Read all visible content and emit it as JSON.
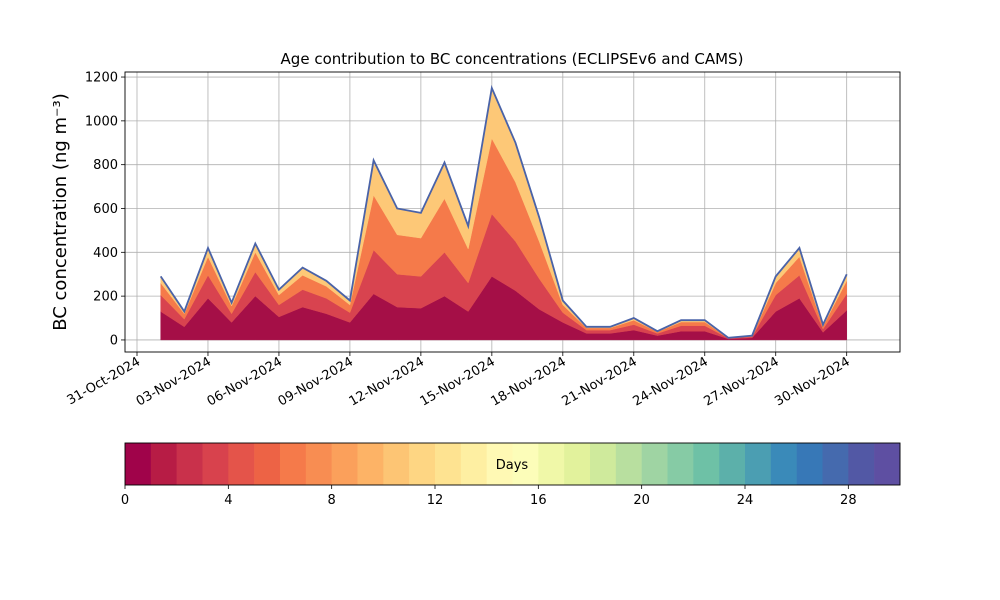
{
  "chart_data": {
    "type": "stacked-area",
    "title": "Age contribution to BC concentrations (ECLIPSEv6 and CAMS)",
    "y_label": "BC concentration (ng m⁻³)",
    "x": [
      "2024-11-01",
      "2024-11-02",
      "2024-11-03",
      "2024-11-04",
      "2024-11-05",
      "2024-11-06",
      "2024-11-07",
      "2024-11-08",
      "2024-11-09",
      "2024-11-10",
      "2024-11-11",
      "2024-11-12",
      "2024-11-13",
      "2024-11-14",
      "2024-11-15",
      "2024-11-16",
      "2024-11-17",
      "2024-11-18",
      "2024-11-19",
      "2024-11-20",
      "2024-11-21",
      "2024-11-22",
      "2024-11-23",
      "2024-11-24",
      "2024-11-25",
      "2024-11-26",
      "2024-11-27",
      "2024-11-28",
      "2024-11-29",
      "2024-11-30"
    ],
    "series": [
      {
        "color": "#a50f47",
        "values": [
          130,
          60,
          190,
          80,
          200,
          105,
          150,
          120,
          80,
          210,
          150,
          145,
          200,
          130,
          290,
          225,
          140,
          80,
          30,
          30,
          45,
          20,
          40,
          40,
          5,
          10,
          130,
          190,
          35,
          135
        ]
      },
      {
        "color": "#d8434f",
        "values": [
          75,
          35,
          105,
          40,
          110,
          55,
          80,
          70,
          45,
          200,
          150,
          145,
          200,
          130,
          285,
          225,
          140,
          45,
          15,
          15,
          25,
          10,
          25,
          25,
          3,
          5,
          75,
          105,
          15,
          75
        ]
      },
      {
        "color": "#f57a4a",
        "values": [
          55,
          25,
          85,
          35,
          90,
          45,
          65,
          55,
          35,
          250,
          180,
          175,
          245,
          155,
          345,
          270,
          170,
          35,
          10,
          10,
          20,
          7,
          17,
          17,
          1,
          3,
          55,
          85,
          13,
          60
        ]
      },
      {
        "color": "#fdc877",
        "values": [
          30,
          10,
          40,
          15,
          40,
          25,
          35,
          25,
          20,
          160,
          120,
          115,
          165,
          105,
          230,
          180,
          110,
          20,
          5,
          5,
          10,
          3,
          8,
          8,
          1,
          2,
          30,
          40,
          7,
          30
        ]
      }
    ],
    "outline_color": "#4a63a8",
    "xlim": [
      "2024-10-31",
      "2024-12-02"
    ],
    "xticks": [
      {
        "value": "2024-10-31",
        "label": "31-Oct-2024"
      },
      {
        "value": "2024-11-03",
        "label": "03-Nov-2024"
      },
      {
        "value": "2024-11-06",
        "label": "06-Nov-2024"
      },
      {
        "value": "2024-11-09",
        "label": "09-Nov-2024"
      },
      {
        "value": "2024-11-12",
        "label": "12-Nov-2024"
      },
      {
        "value": "2024-11-15",
        "label": "15-Nov-2024"
      },
      {
        "value": "2024-11-18",
        "label": "18-Nov-2024"
      },
      {
        "value": "2024-11-21",
        "label": "21-Nov-2024"
      },
      {
        "value": "2024-11-24",
        "label": "24-Nov-2024"
      },
      {
        "value": "2024-11-27",
        "label": "27-Nov-2024"
      },
      {
        "value": "2024-11-30",
        "label": "30-Nov-2024"
      }
    ],
    "ylim": [
      -55,
      1223
    ],
    "yticks": [
      0,
      200,
      400,
      600,
      800,
      1000,
      1200
    ],
    "grid": true,
    "colorbar": {
      "label": "Days",
      "lim": [
        0,
        30
      ],
      "ticks": [
        0,
        4,
        8,
        12,
        16,
        20,
        24,
        28
      ],
      "colors": [
        "#a0034a",
        "#b71c45",
        "#c9314b",
        "#d8424d",
        "#e4544a",
        "#ed6345",
        "#f57a4a",
        "#f88d52",
        "#fba05b",
        "#fdb366",
        "#fdc574",
        "#fed683",
        "#fee391",
        "#feefa2",
        "#fff9b4",
        "#fcfdb9",
        "#f0f8a8",
        "#e2f29c",
        "#cfea9c",
        "#b8df9f",
        "#9fd4a3",
        "#86cba5",
        "#6ec1a6",
        "#5cb0aa",
        "#4b9eb2",
        "#3a8ab9",
        "#3778b7",
        "#456aae",
        "#5258a5",
        "#5e4fa2"
      ]
    }
  }
}
